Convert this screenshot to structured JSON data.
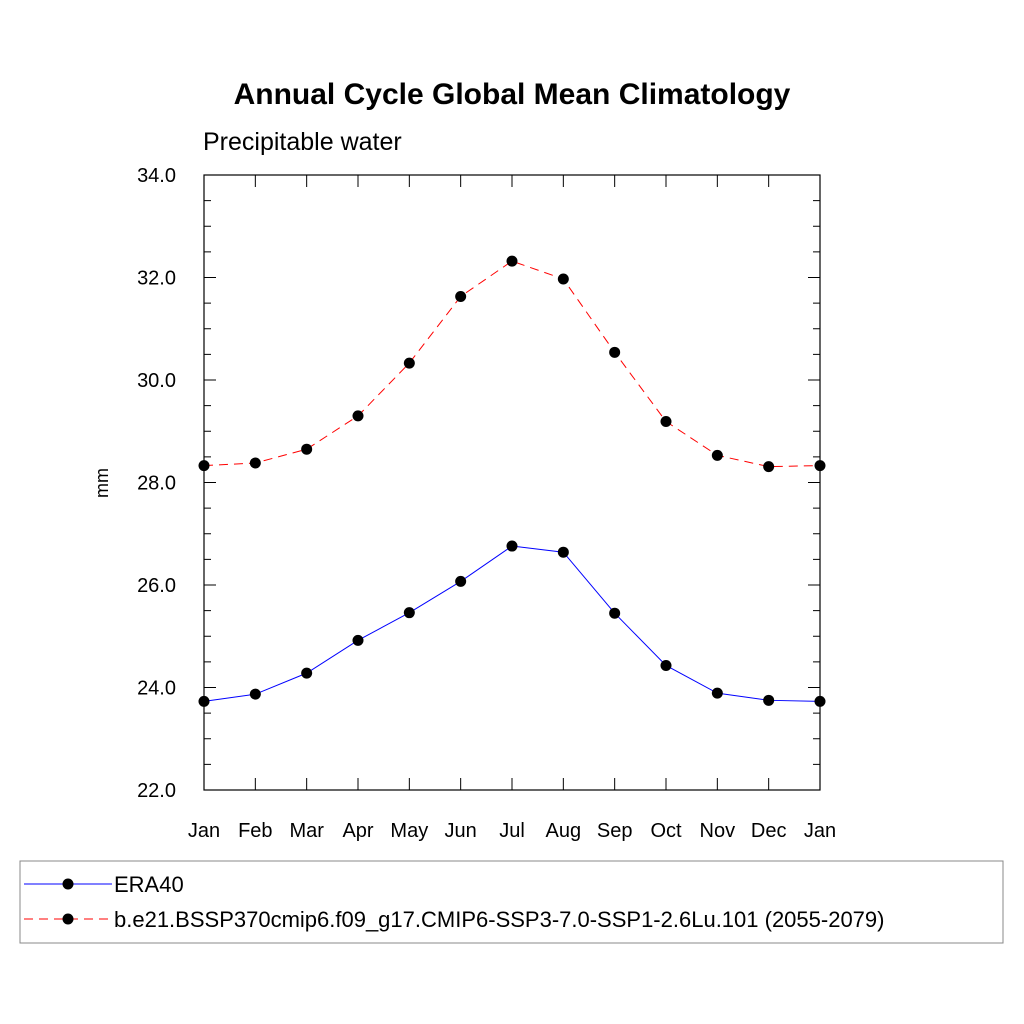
{
  "chart_data": {
    "type": "line",
    "title": "Annual Cycle Global Mean Climatology",
    "subtitle": "Precipitable water",
    "xlabel": "",
    "ylabel": "mm",
    "categories": [
      "Jan",
      "Feb",
      "Mar",
      "Apr",
      "May",
      "Jun",
      "Jul",
      "Aug",
      "Sep",
      "Oct",
      "Nov",
      "Dec",
      "Jan"
    ],
    "ylim": [
      22.0,
      34.0
    ],
    "yticks": [
      "22.0",
      "24.0",
      "26.0",
      "28.0",
      "30.0",
      "32.0",
      "34.0"
    ],
    "grid": false,
    "legend_position": "bottom",
    "series": [
      {
        "name": "ERA40",
        "color": "#0000ff",
        "dash": "solid",
        "marker": "filled-circle",
        "values": [
          23.73,
          23.87,
          24.28,
          24.92,
          25.46,
          26.07,
          26.76,
          26.64,
          25.45,
          24.43,
          23.89,
          23.75,
          23.73
        ]
      },
      {
        "name": "b.e21.BSSP370cmip6.f09_g17.CMIP6-SSP3-7.0-SSP1-2.6Lu.101 (2055-2079)",
        "color": "#ff0000",
        "dash": "dashed",
        "marker": "filled-circle",
        "values": [
          28.33,
          28.38,
          28.65,
          29.3,
          30.33,
          31.63,
          32.32,
          31.97,
          30.54,
          29.19,
          28.53,
          28.31,
          28.33
        ]
      }
    ]
  }
}
